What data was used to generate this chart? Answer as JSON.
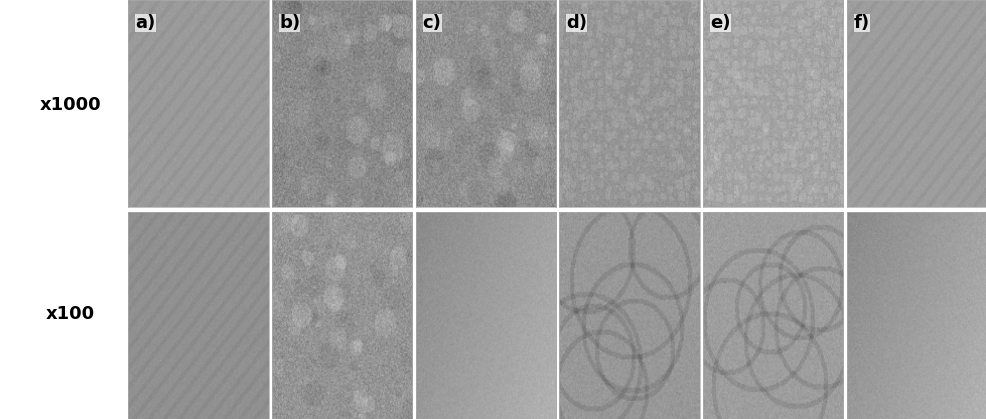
{
  "figure_width": 9.87,
  "figure_height": 4.19,
  "dpi": 100,
  "background_color": "#ffffff",
  "panel_labels": [
    "a)",
    "b)",
    "c)",
    "d)",
    "e)",
    "f)"
  ],
  "row_labels": [
    "x1000",
    "x100"
  ],
  "label_fontsize": 13,
  "row_label_fontsize": 13,
  "panel_label_color": "#000000",
  "row_label_color": "#000000",
  "top_bases": [
    155,
    138,
    142,
    148,
    162,
    158
  ],
  "bot_bases": [
    145,
    148,
    158,
    152,
    158,
    158
  ],
  "border_color": "#aaaaaa"
}
